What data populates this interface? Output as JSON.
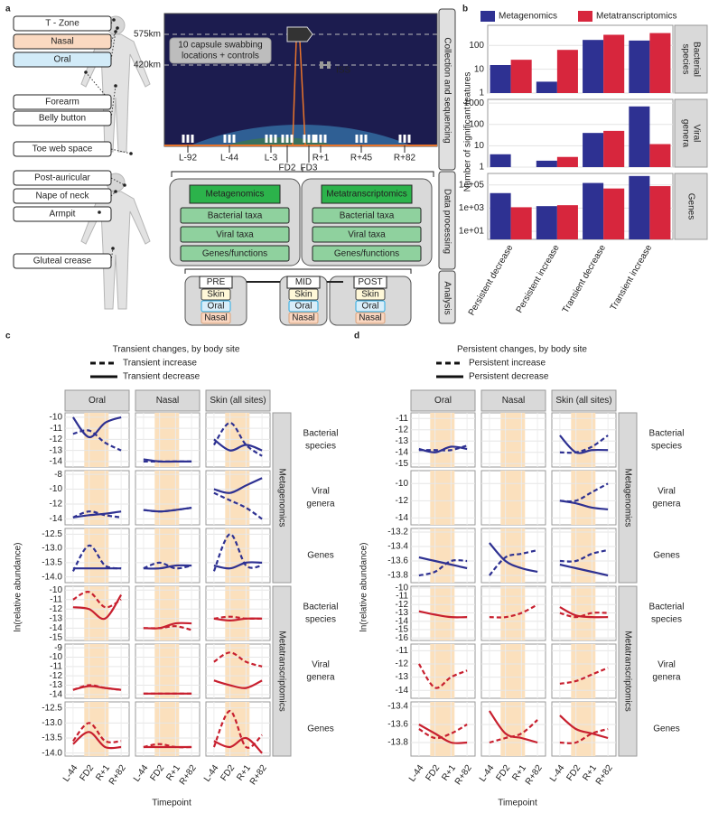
{
  "panel_labels": [
    "a",
    "b",
    "c",
    "d"
  ],
  "panel_a": {
    "body_sites": [
      "T - Zone",
      "Nasal",
      "Oral",
      "Forearm",
      "Belly button",
      "Toe web space",
      "Post-auricular",
      "Nape of neck",
      "Armpit",
      "Gluteal crease"
    ],
    "altitudes": [
      "575km",
      "420km"
    ],
    "capsule_note": [
      "10 capsule swabbing",
      "locations + controls"
    ],
    "station": "ISS",
    "timepoints": [
      "L-92",
      "L-44",
      "L-3",
      "FD2",
      "FD3",
      "R+1",
      "R+45",
      "R+82"
    ],
    "stages": [
      "Collection and sequencing",
      "Data processing",
      "Analysis"
    ],
    "processing": [
      {
        "title": "Metagenomics",
        "items": [
          "Bacterial taxa",
          "Viral taxa",
          "Genes/functions"
        ]
      },
      {
        "title": "Metatranscriptomics",
        "items": [
          "Bacterial taxa",
          "Viral taxa",
          "Genes/functions"
        ]
      }
    ],
    "analysis": [
      {
        "title": "PRE",
        "sites": [
          "Skin",
          "Oral",
          "Nasal"
        ]
      },
      {
        "title": "MID",
        "sites": [
          "Skin",
          "Oral",
          "Nasal"
        ]
      },
      {
        "title": "POST",
        "sites": [
          "Skin",
          "Oral",
          "Nasal"
        ]
      }
    ]
  },
  "chart_data": [
    {
      "type": "bar",
      "log_scale": true,
      "grid": true,
      "ylabel": "Number of significant features",
      "categories": [
        "Persistent decrease",
        "Persistent increase",
        "Transient decrease",
        "Transient increase"
      ],
      "series": [
        {
          "name": "Metagenomics",
          "color": "#2e3192",
          "values": [
            [
              15,
              3,
              170,
              160
            ],
            [
              4,
              2,
              40,
              700
            ],
            [
              20000,
              1500,
              150000,
              600000
            ]
          ]
        },
        {
          "name": "Metatranscriptomics",
          "color": "#d7263d",
          "values": [
            [
              25,
              65,
              280,
              330
            ],
            [
              null,
              3,
              50,
              12
            ],
            [
              1200,
              1800,
              50000,
              80000
            ]
          ]
        }
      ],
      "facets": [
        {
          "label": [
            "Bacterial",
            "species"
          ],
          "ylim": [
            1,
            700
          ],
          "yticks": [
            1,
            10,
            100
          ]
        },
        {
          "label": [
            "Viral",
            "genera"
          ],
          "ylim": [
            1,
            1500
          ],
          "yticks": [
            1,
            10,
            100,
            1000
          ]
        },
        {
          "label": [
            "Genes"
          ],
          "ylim": [
            2,
            1000000
          ],
          "yticks": [
            {
              "value": 10,
              "label": "1e+01"
            },
            {
              "value": 1000,
              "label": "1e+03"
            },
            {
              "value": 100000,
              "label": "1e+05"
            }
          ]
        }
      ]
    },
    {
      "type": "line",
      "title": "Transient changes, by body site",
      "grid": true,
      "series": [
        {
          "name": "Transient increase",
          "dash": "dashed"
        },
        {
          "name": "Transient decrease",
          "dash": "solid"
        }
      ],
      "categories": [
        "L-44",
        "FD2",
        "R+1",
        "R+82"
      ],
      "xlabel": "Timepoint",
      "ylabel": "ln(relative abundance)",
      "columns": [
        "Oral",
        "Nasal",
        "Skin (all sites)"
      ],
      "row_groups": [
        {
          "name": "Metagenomics",
          "color": "#2e3192"
        },
        {
          "name": "Metatranscriptomics",
          "color": "#c8202f"
        }
      ],
      "rows": [
        {
          "label": [
            "Bacterial",
            "species"
          ],
          "group": 0,
          "ylim": [
            -14.5,
            -9.6
          ],
          "yticks": [
            -10,
            -11,
            -12,
            -13,
            -14
          ],
          "values": [
            [
              [
                -11.5,
                -11.2,
                -12.3,
                -13
              ],
              [
                -10,
                -11.8,
                -10.5,
                -10
              ]
            ],
            [
              [
                -14,
                -14,
                -14,
                -14
              ],
              [
                -13.8,
                -14,
                -14,
                -14
              ]
            ],
            [
              [
                -12.5,
                -10.5,
                -12.5,
                -13.5
              ],
              [
                -12,
                -13,
                -12.5,
                -13
              ]
            ]
          ]
        },
        {
          "label": [
            "Viral",
            "genera"
          ],
          "group": 0,
          "ylim": [
            -14.8,
            -7.5
          ],
          "yticks": [
            -8,
            -10,
            -12,
            -14
          ],
          "values": [
            [
              [
                -13.8,
                -13,
                -13.5,
                -13.8
              ],
              [
                -13.8,
                -13.5,
                -13.3,
                -13
              ]
            ],
            [
              [
                -12.8,
                -13,
                -12.8,
                -12.5
              ],
              [
                -12.8,
                -13,
                -12.8,
                -12.5
              ]
            ],
            [
              [
                -10.5,
                -11.5,
                -12.5,
                -14
              ],
              [
                -10,
                -10.5,
                -9.5,
                -8.5
              ]
            ]
          ]
        },
        {
          "label": [
            "Genes"
          ],
          "group": 0,
          "ylim": [
            -14.2,
            -12.3
          ],
          "yticks": [
            -12.5,
            {
              "value": -13,
              "label": "-13.0"
            },
            -13.5,
            {
              "value": -14,
              "label": "-14.0"
            }
          ],
          "values": [
            [
              [
                -13.8,
                -12.9,
                -13.6,
                -13.7
              ],
              [
                -13.7,
                -13.7,
                -13.7,
                -13.7
              ]
            ],
            [
              [
                -13.7,
                -13.5,
                -13.7,
                -13.6
              ],
              [
                -13.7,
                -13.7,
                -13.6,
                -13.6
              ]
            ],
            [
              [
                -13.8,
                -12.5,
                -13.6,
                -13.6
              ],
              [
                -13.6,
                -13.7,
                -13.5,
                -13.5
              ]
            ]
          ]
        },
        {
          "label": [
            "Bacterial",
            "species"
          ],
          "group": 1,
          "ylim": [
            -15.3,
            -9.6
          ],
          "yticks": [
            -10,
            -11,
            -12,
            -13,
            -14,
            -15
          ],
          "values": [
            [
              [
                -11,
                -10.2,
                -11.8,
                -11
              ],
              [
                -11.8,
                -12,
                -13,
                -10.5
              ]
            ],
            [
              [
                -14,
                -14,
                -13.8,
                -14.2
              ],
              [
                -14,
                -14,
                -13.5,
                -13.5
              ]
            ],
            [
              [
                -13,
                -12.8,
                -13,
                -13
              ],
              [
                -13,
                -13.2,
                -13,
                -13
              ]
            ]
          ]
        },
        {
          "label": [
            "Viral",
            "genera"
          ],
          "group": 1,
          "ylim": [
            -14.4,
            -8.6
          ],
          "yticks": [
            -9,
            -10,
            -11,
            -12,
            -13,
            -14
          ],
          "values": [
            [
              [
                -13.5,
                -13,
                -13.3,
                -13.5
              ],
              [
                -13.5,
                -13.1,
                -13.3,
                -13.5
              ]
            ],
            [
              [
                -13.9,
                -13.9,
                -13.9,
                -13.9
              ],
              [
                -13.9,
                -13.9,
                -13.9,
                -13.9
              ]
            ],
            [
              [
                -10.5,
                -9.5,
                -10.5,
                -11
              ],
              [
                -12.5,
                -13,
                -13.3,
                -12.5
              ]
            ]
          ]
        },
        {
          "label": [
            "Genes"
          ],
          "group": 1,
          "ylim": [
            -14.1,
            -12.3
          ],
          "yticks": [
            -12.5,
            {
              "value": -13,
              "label": "-13.0"
            },
            -13.5,
            {
              "value": -14,
              "label": "-14.0"
            }
          ],
          "values": [
            [
              [
                -13.6,
                -13,
                -13.6,
                -13.6
              ],
              [
                -13.7,
                -13.3,
                -13.8,
                -13.8
              ]
            ],
            [
              [
                -13.8,
                -13.7,
                -13.8,
                -13.8
              ],
              [
                -13.8,
                -13.8,
                -13.8,
                -13.8
              ]
            ],
            [
              [
                -13.8,
                -12.6,
                -13.8,
                -13.4
              ],
              [
                -13.6,
                -13.8,
                -13.5,
                -14
              ]
            ]
          ]
        }
      ]
    },
    {
      "type": "line",
      "title": "Persistent changes, by body site",
      "grid": true,
      "series": [
        {
          "name": "Persistent increase",
          "dash": "dashed"
        },
        {
          "name": "Persistent decrease",
          "dash": "solid"
        }
      ],
      "categories": [
        "L-44",
        "FD2",
        "R+1",
        "R+82"
      ],
      "xlabel": "Timepoint",
      "ylabel": "ln(relative abundance)",
      "columns": [
        "Oral",
        "Nasal",
        "Skin (all sites)"
      ],
      "row_groups": [
        {
          "name": "Metagenomics",
          "color": "#2e3192"
        },
        {
          "name": "Metatranscriptomics",
          "color": "#c8202f"
        }
      ],
      "rows": [
        {
          "label": [
            "Bacterial",
            "species"
          ],
          "group": 0,
          "ylim": [
            -15.3,
            -10.5
          ],
          "yticks": [
            -11,
            -12,
            -13,
            -14,
            -15
          ],
          "values": [
            [
              [
                -13.8,
                -13.8,
                -13.8,
                -13.4
              ],
              [
                -13.7,
                -14,
                -13.5,
                -13.7
              ]
            ],
            [
              [
                null,
                null,
                null,
                null
              ],
              [
                null,
                null,
                null,
                null
              ]
            ],
            [
              [
                -14,
                -14,
                -13.5,
                -12.5
              ],
              [
                -12.5,
                -14,
                -13.8,
                -13.8
              ]
            ]
          ]
        },
        {
          "label": [
            "Viral",
            "genera"
          ],
          "group": 0,
          "ylim": [
            -14.8,
            -8.5
          ],
          "yticks": [
            -10,
            -12,
            -14
          ],
          "values": [
            [
              [
                null,
                null,
                null,
                null
              ],
              [
                null,
                null,
                null,
                null
              ]
            ],
            [
              [
                null,
                null,
                null,
                null
              ],
              [
                null,
                null,
                null,
                null
              ]
            ],
            [
              [
                -12,
                -12,
                -11,
                -10
              ],
              [
                -12,
                -12.3,
                -12.8,
                -13
              ]
            ]
          ]
        },
        {
          "label": [
            "Genes"
          ],
          "group": 0,
          "ylim": [
            -13.9,
            -13.15
          ],
          "yticks": [
            -13.2,
            -13.4,
            -13.6,
            -13.8
          ],
          "values": [
            [
              [
                -13.8,
                -13.75,
                -13.6,
                -13.6
              ],
              [
                -13.55,
                -13.6,
                -13.65,
                -13.7
              ]
            ],
            [
              [
                -13.8,
                -13.55,
                -13.5,
                -13.45
              ],
              [
                -13.35,
                -13.6,
                -13.7,
                -13.75
              ]
            ],
            [
              [
                -13.6,
                -13.6,
                -13.5,
                -13.45
              ],
              [
                -13.65,
                -13.7,
                -13.75,
                -13.8
              ]
            ]
          ]
        },
        {
          "label": [
            "Bacterial",
            "species"
          ],
          "group": 1,
          "ylim": [
            -16.3,
            -9.8
          ],
          "yticks": [
            -10,
            -11,
            -12,
            -13,
            -14,
            -15,
            -16
          ],
          "values": [
            [
              [
                null,
                null,
                null,
                null
              ],
              [
                -12.8,
                -13.2,
                -13.5,
                -13.5
              ]
            ],
            [
              [
                -13.5,
                -13.5,
                -13,
                -12
              ],
              [
                null,
                null,
                null,
                null
              ]
            ],
            [
              [
                -13,
                -13.5,
                -13,
                -13
              ],
              [
                -12.3,
                -13.3,
                -13.5,
                -13.5
              ]
            ]
          ]
        },
        {
          "label": [
            "Viral",
            "genera"
          ],
          "group": 1,
          "ylim": [
            -14.6,
            -10.5
          ],
          "yticks": [
            -11,
            -12,
            -13,
            -14
          ],
          "values": [
            [
              [
                -12,
                -13.8,
                -13,
                -12.5
              ],
              [
                null,
                null,
                null,
                null
              ]
            ],
            [
              [
                null,
                null,
                null,
                null
              ],
              [
                null,
                null,
                null,
                null
              ]
            ],
            [
              [
                -13.5,
                -13.3,
                -12.8,
                -12.3
              ],
              [
                null,
                null,
                null,
                null
              ]
            ]
          ]
        },
        {
          "label": [
            "Genes"
          ],
          "group": 1,
          "ylim": [
            -13.95,
            -13.35
          ],
          "yticks": [
            -13.4,
            -13.6,
            -13.8
          ],
          "values": [
            [
              [
                -13.65,
                -13.75,
                -13.7,
                -13.6
              ],
              [
                -13.6,
                -13.7,
                -13.8,
                -13.8
              ]
            ],
            [
              [
                -13.8,
                -13.75,
                -13.7,
                -13.55
              ],
              [
                -13.45,
                -13.7,
                -13.75,
                -13.8
              ]
            ],
            [
              [
                -13.8,
                -13.8,
                -13.7,
                -13.65
              ],
              [
                -13.5,
                -13.65,
                -13.7,
                -13.75
              ]
            ]
          ]
        }
      ]
    }
  ]
}
